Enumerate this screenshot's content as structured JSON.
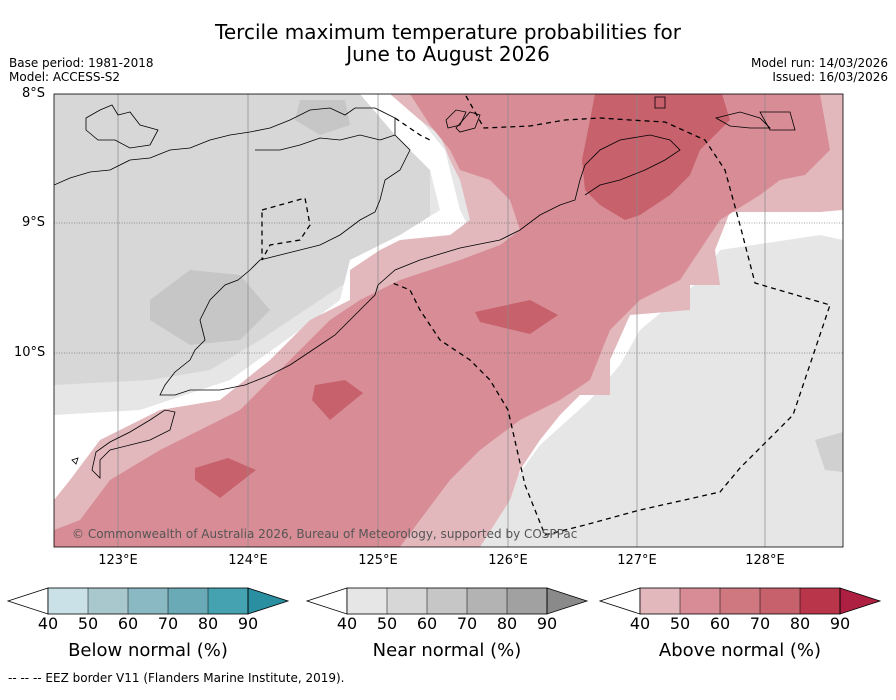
{
  "title": {
    "line1": "Tercile maximum temperature probabilities for",
    "line2": "June to August 2026"
  },
  "meta": {
    "base_period": "Base period: 1981-2018",
    "model": "Model: ACCESS-S2",
    "model_run": "Model run: 14/03/2026",
    "issued": "Issued: 16/03/2026"
  },
  "axes": {
    "lat_labels": [
      "8°S",
      "9°S",
      "10°S"
    ],
    "lon_labels": [
      "123°E",
      "124°E",
      "125°E",
      "126°E",
      "127°E",
      "128°E"
    ]
  },
  "copyright": "© Commonwealth of Australia 2026, Bureau of Meteorology, supported by COSPPac",
  "legend": {
    "tick_labels": [
      "40",
      "50",
      "60",
      "70",
      "80",
      "90"
    ],
    "colorbars": [
      {
        "title": "Below normal (%)",
        "colors": [
          "#c9e1e7",
          "#a8c8cd",
          "#8ab9c3",
          "#6aa9b6",
          "#44a2b1",
          "#2a8fa0"
        ]
      },
      {
        "title": "Near normal (%)",
        "colors": [
          "#e6e6e6",
          "#d7d7d7",
          "#c6c6c6",
          "#b3b3b3",
          "#a1a1a1",
          "#8a8a8a"
        ]
      },
      {
        "title": "Above normal (%)",
        "colors": [
          "#e2b8bd",
          "#d88d96",
          "#cf7880",
          "#c7616c",
          "#b9354a",
          "#ae2041"
        ]
      }
    ]
  },
  "footnote": "--  --  -- EEZ border V11 (Flanders Marine Institute, 2019)."
}
